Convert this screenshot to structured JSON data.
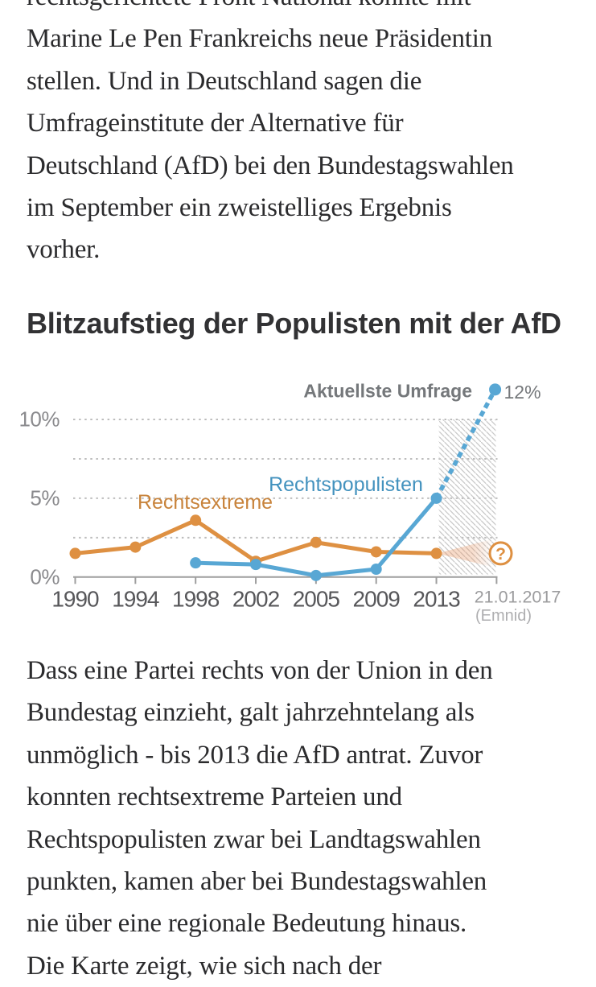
{
  "article": {
    "top_lines": [
      "rechtsgerichtete Front National könnte mit",
      "Marine Le Pen Frankreichs neue Präsidentin",
      "stellen. Und in Deutschland sagen die",
      "Umfrageinstitute der Alternative für",
      "Deutschland (AfD) bei den Bundestagswahlen",
      "im September ein zweistelliges Ergebnis",
      "vorher."
    ],
    "bottom_lines": [
      "Dass eine Partei rechts von der Union in den",
      "Bundestag einzieht, galt jahrzehntelang als",
      "unmöglich - bis 2013 die AfD antrat. Zuvor",
      "konnten rechtsextreme Parteien und",
      "Rechtspopulisten zwar bei Landtagswahlen",
      "punkten, kamen aber bei Bundestagswahlen",
      "nie über eine regionale Bedeutung hinaus.",
      "Die Karte zeigt, wie sich nach der"
    ]
  },
  "chart": {
    "title": "Blitzaufstieg der Populisten mit der AfD"
  },
  "chart_data": {
    "type": "line",
    "title": "Blitzaufstieg der Populisten mit der AfD",
    "categories": [
      "1990",
      "1994",
      "1998",
      "2002",
      "2005",
      "2009",
      "2013",
      "21.01.2017"
    ],
    "final_category_sub": "(Emnid)",
    "series": [
      {
        "name": "Rechtsextreme",
        "color": "#DE9042",
        "label_color": "#C8833B",
        "values": [
          1.5,
          1.9,
          3.6,
          1.0,
          2.2,
          1.6,
          1.5,
          null
        ],
        "uncertainty_marker": "?"
      },
      {
        "name": "Rechtspopulisten",
        "color": "#58A7D4",
        "label_color": "#4392BE",
        "values": [
          null,
          null,
          0.9,
          0.8,
          0.1,
          0.5,
          5.0,
          12
        ],
        "projection_from_index": 6
      }
    ],
    "annotation": {
      "text": "Aktuellste Umfrage",
      "value_label": "12%"
    },
    "yticks": [
      0,
      5,
      10
    ],
    "ytick_suffix": "%",
    "gridlines_pct": [
      2.5,
      5,
      7.5,
      10
    ],
    "ylim": [
      0,
      12.5
    ],
    "hatch_region_categories": [
      "2013",
      "21.01.2017"
    ],
    "colors": {
      "grid": "#BDBDBD",
      "axis": "#9E9E9E",
      "hatch": "#C9C9C9",
      "year_label": "#57575A",
      "ytick_label": "#8A8A8D",
      "annotation_text": "#75787B",
      "final_category": "#9C9C9E",
      "final_category_sub": "#AEAEB0",
      "uncertainty_wedge": "#E8935F"
    }
  }
}
